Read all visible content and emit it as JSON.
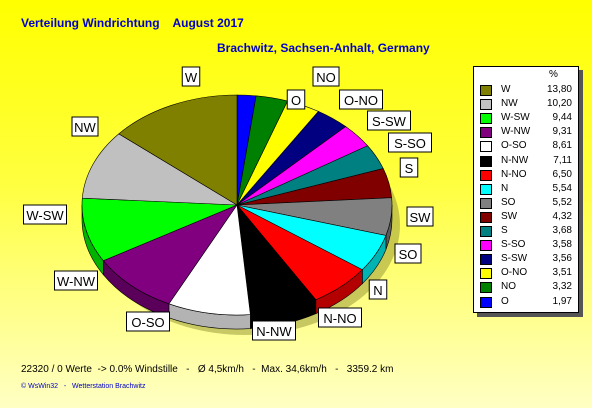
{
  "header": {
    "title": "Verteilung Windrichtung    August 2017",
    "location": "Brachwitz, Sachsen-Anhalt, Germany"
  },
  "legend": {
    "unit": "%"
  },
  "chart_data": {
    "type": "pie",
    "title": "Verteilung Windrichtung    August 2017",
    "subtitle": "Brachwitz, Sachsen-Anhalt, Germany",
    "unit": "%",
    "legend_position": "right",
    "slices": [
      {
        "name": "W",
        "value": 13.8,
        "value_label": "13,80",
        "color": "#808000"
      },
      {
        "name": "NW",
        "value": 10.2,
        "value_label": "10,20",
        "color": "#c0c0c0"
      },
      {
        "name": "W-SW",
        "value": 9.44,
        "value_label": "9,44",
        "color": "#00ff00"
      },
      {
        "name": "W-NW",
        "value": 9.31,
        "value_label": "9,31",
        "color": "#800080"
      },
      {
        "name": "O-SO",
        "value": 8.61,
        "value_label": "8,61",
        "color": "#ffffff"
      },
      {
        "name": "N-NW",
        "value": 7.11,
        "value_label": "7,11",
        "color": "#000000"
      },
      {
        "name": "N-NO",
        "value": 6.5,
        "value_label": "6,50",
        "color": "#ff0000"
      },
      {
        "name": "N",
        "value": 5.54,
        "value_label": "5,54",
        "color": "#00ffff"
      },
      {
        "name": "SO",
        "value": 5.52,
        "value_label": "5,52",
        "color": "#808080"
      },
      {
        "name": "SW",
        "value": 4.32,
        "value_label": "4,32",
        "color": "#800000"
      },
      {
        "name": "S",
        "value": 3.68,
        "value_label": "3,68",
        "color": "#008080"
      },
      {
        "name": "S-SO",
        "value": 3.58,
        "value_label": "3,58",
        "color": "#ff00ff"
      },
      {
        "name": "S-SW",
        "value": 3.56,
        "value_label": "3,56",
        "color": "#000080"
      },
      {
        "name": "O-NO",
        "value": 3.51,
        "value_label": "3,51",
        "color": "#ffff00"
      },
      {
        "name": "NO",
        "value": 3.32,
        "value_label": "3,32",
        "color": "#008000"
      },
      {
        "name": "O",
        "value": 1.97,
        "value_label": "1,97",
        "color": "#0000ff"
      }
    ]
  },
  "footer": {
    "stats": "22320 / 0 Werte  -> 0.0% Windstille   -   Ø 4,5km/h   -  Max. 34,6km/h   -   3359.2 km",
    "credit": "© WsWin32   -   Wetterstation Brachwitz"
  }
}
